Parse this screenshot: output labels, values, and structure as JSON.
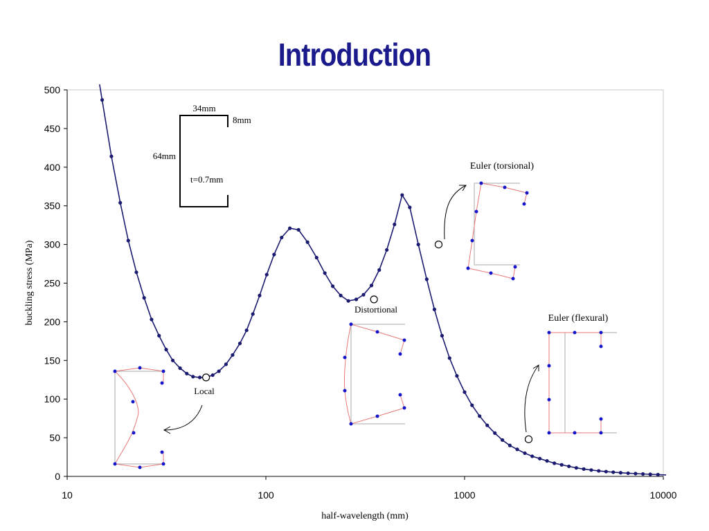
{
  "page": {
    "title": "Introduction"
  },
  "chart_data": {
    "type": "line",
    "title": "",
    "xlabel": "half-wavelength (mm)",
    "ylabel": "buckling stress (MPa)",
    "xscale": "log",
    "xlim": [
      10,
      10000
    ],
    "ylim": [
      0,
      500
    ],
    "x_ticks": [
      10,
      100,
      1000,
      10000
    ],
    "y_ticks": [
      0,
      50,
      100,
      150,
      200,
      250,
      300,
      350,
      400,
      450,
      500
    ],
    "grid": false,
    "series": [
      {
        "color": "#1a1a70",
        "x": [
          15,
          16.7,
          18.5,
          20.3,
          22.3,
          24.4,
          26.6,
          29,
          31.5,
          34,
          37,
          40,
          43,
          46.5,
          50,
          54,
          58,
          63,
          68,
          74,
          80,
          86,
          93,
          101,
          110,
          120,
          132,
          146,
          162,
          180,
          198,
          217,
          238,
          260,
          285,
          310,
          340,
          372,
          406,
          444,
          485,
          530,
          585,
          645,
          705,
          770,
          840,
          915,
          1000,
          1090,
          1190,
          1300,
          1420,
          1550,
          1690,
          1840,
          2010,
          2190,
          2390,
          2600,
          2830,
          3080,
          3350,
          3650,
          3980,
          4340,
          4730,
          5150,
          5600,
          6100,
          6650,
          7250,
          7900,
          8600,
          9400
        ],
        "y": [
          487,
          414,
          354,
          305,
          264,
          231,
          203,
          182,
          164,
          150,
          140,
          133,
          129,
          128,
          128,
          131,
          136,
          145,
          157,
          172,
          189,
          210,
          234,
          261,
          287,
          309,
          321,
          319,
          303,
          283,
          263,
          246,
          234,
          227,
          229,
          235,
          247,
          267,
          293,
          326,
          364,
          348,
          300,
          255,
          216,
          182,
          153,
          130,
          109,
          92,
          78,
          66,
          56,
          47,
          40,
          35,
          30,
          26,
          23,
          20,
          17,
          15,
          13,
          11,
          9.5,
          8.2,
          7.1,
          6.2,
          5.4,
          4.7,
          4.1,
          3.6,
          3.1,
          2.7,
          2.3
        ]
      }
    ],
    "highlighted_points": [
      {
        "x": 50,
        "y": 128,
        "label": "Local"
      },
      {
        "x": 350,
        "y": 229,
        "label": "Distortional"
      },
      {
        "x": 740,
        "y": 300,
        "label": "Euler (torsional)"
      },
      {
        "x": 2100,
        "y": 48,
        "label": "Euler (flexural)"
      }
    ],
    "section_dimensions": [
      "34mm",
      "8mm",
      "64mm",
      "t=0.7mm"
    ]
  }
}
